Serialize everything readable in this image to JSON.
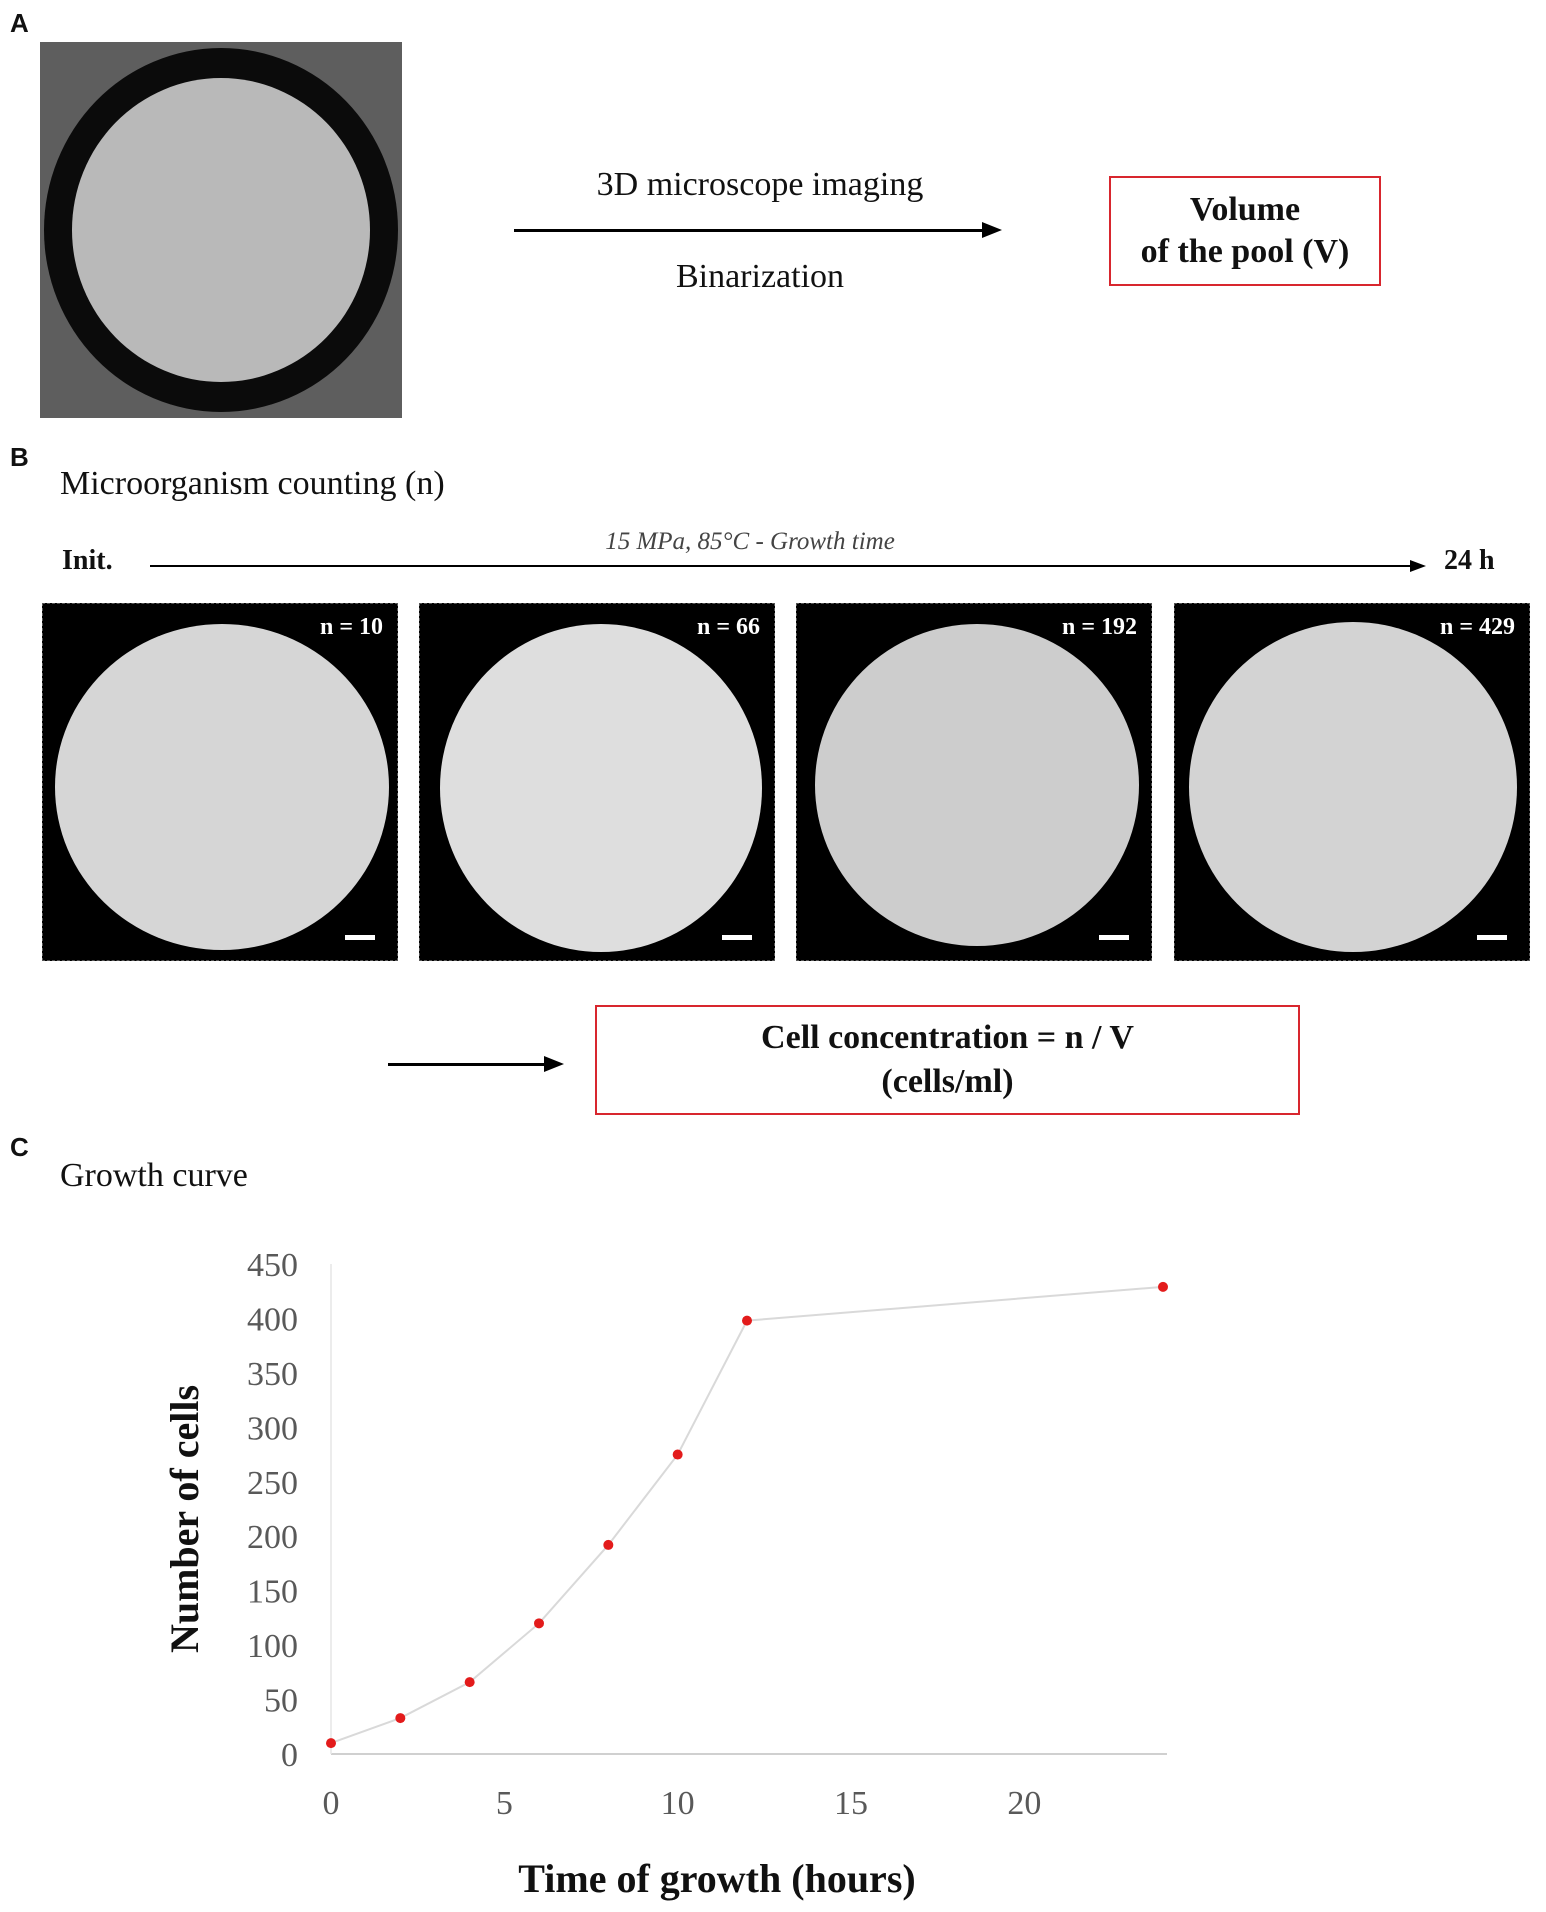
{
  "panel_a": {
    "letter": "A",
    "arrow_top_label": "3D microscope imaging",
    "arrow_bottom_label": "Binarization",
    "result_line1": "Volume",
    "result_line2": "of the pool (V)"
  },
  "panel_b": {
    "letter": "B",
    "heading": "Microorganism counting (n)",
    "timeline_start": "Init.",
    "timeline_label": "15 MPa, 85°C - Growth time",
    "timeline_end": "24 h",
    "images": [
      {
        "count_label": "n = 10"
      },
      {
        "count_label": "n = 66"
      },
      {
        "count_label": "n = 192"
      },
      {
        "count_label": "n = 429"
      }
    ],
    "result_line1": "Cell concentration = n / V",
    "result_line2": "(cells/ml)"
  },
  "panel_c": {
    "letter": "C",
    "heading": "Growth curve"
  },
  "colors": {
    "box_border": "#d8262e",
    "point": "#e31b1b",
    "curve": "#d9d9d9",
    "axis_text": "#595959"
  },
  "chart_data": {
    "type": "scatter",
    "x": [
      0,
      2,
      4,
      6,
      8,
      10,
      12,
      24
    ],
    "y": [
      10,
      33,
      66,
      120,
      192,
      275,
      398,
      429
    ],
    "xlabel": "Time of growth (hours)",
    "ylabel": "Number of cells",
    "xlim": [
      0,
      24
    ],
    "ylim": [
      0,
      450
    ],
    "xticks": [
      0,
      5,
      10,
      15,
      20
    ],
    "yticks": [
      0,
      50,
      100,
      150,
      200,
      250,
      300,
      350,
      400,
      450
    ],
    "grid": false,
    "connecting_line": true
  }
}
